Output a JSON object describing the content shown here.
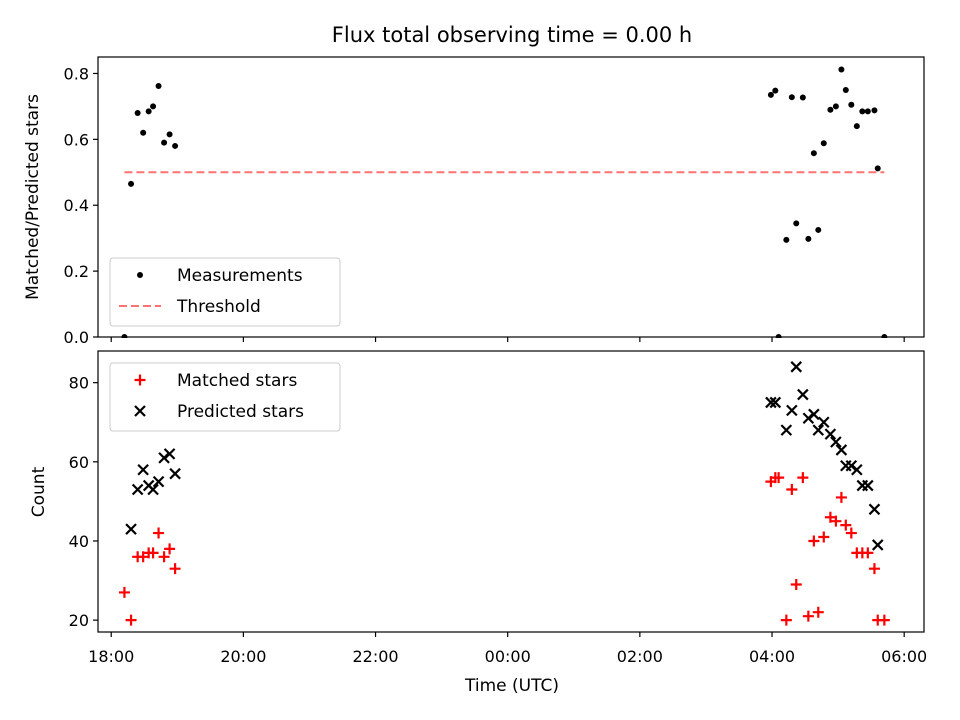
{
  "chart_data": [
    {
      "type": "scatter",
      "title": "Flux total observing time = 0.00 h",
      "ylabel": "Matched/Predicted stars",
      "xlabel": "",
      "xlim": [
        "17:48",
        "06:18"
      ],
      "ylim": [
        0,
        0.85
      ],
      "yticks": [
        "0.0",
        "0.2",
        "0.4",
        "0.6",
        "0.8"
      ],
      "legend_placement": "lower-left",
      "series": [
        {
          "name": "Measurements",
          "color": "#000000",
          "marker": "dot",
          "points": [
            [
              "18:12",
              0.0
            ],
            [
              "18:18",
              0.465
            ],
            [
              "18:24",
              0.68
            ],
            [
              "18:29",
              0.62
            ],
            [
              "18:34",
              0.685
            ],
            [
              "18:38",
              0.7
            ],
            [
              "18:43",
              0.762
            ],
            [
              "18:48",
              0.59
            ],
            [
              "18:53",
              0.615
            ],
            [
              "18:58",
              0.58
            ],
            [
              "03:59",
              0.735
            ],
            [
              "04:03",
              0.748
            ],
            [
              "04:06",
              0.0
            ],
            [
              "04:13",
              0.295
            ],
            [
              "04:18",
              0.728
            ],
            [
              "04:22",
              0.345
            ],
            [
              "04:28",
              0.727
            ],
            [
              "04:33",
              0.298
            ],
            [
              "04:38",
              0.558
            ],
            [
              "04:42",
              0.325
            ],
            [
              "04:47",
              0.588
            ],
            [
              "04:53",
              0.69
            ],
            [
              "04:58",
              0.7
            ],
            [
              "05:03",
              0.812
            ],
            [
              "05:07",
              0.75
            ],
            [
              "05:12",
              0.705
            ],
            [
              "05:17",
              0.64
            ],
            [
              "05:22",
              0.685
            ],
            [
              "05:27",
              0.685
            ],
            [
              "05:33",
              0.688
            ],
            [
              "05:36",
              0.512
            ],
            [
              "05:42",
              0.0
            ]
          ]
        },
        {
          "name": "Threshold",
          "color": "#ff7373",
          "style": "dashed",
          "points": [
            [
              "18:12",
              0.5
            ],
            [
              "05:42",
              0.5
            ]
          ]
        }
      ]
    },
    {
      "type": "scatter",
      "title": "",
      "ylabel": "Count",
      "xlabel": "Time (UTC)",
      "xlim": [
        "17:48",
        "06:18"
      ],
      "ylim": [
        17,
        88
      ],
      "yticks": [
        "20",
        "40",
        "60",
        "80"
      ],
      "xticks": [
        "18:00",
        "20:00",
        "22:00",
        "00:00",
        "02:00",
        "04:00",
        "06:00"
      ],
      "legend_placement": "upper-left",
      "series": [
        {
          "name": "Matched stars",
          "color": "#ff0000",
          "marker": "plus",
          "points": [
            [
              "18:12",
              27
            ],
            [
              "18:18",
              20
            ],
            [
              "18:24",
              36
            ],
            [
              "18:29",
              36
            ],
            [
              "18:34",
              37
            ],
            [
              "18:38",
              37
            ],
            [
              "18:43",
              42
            ],
            [
              "18:48",
              36
            ],
            [
              "18:53",
              38
            ],
            [
              "18:58",
              33
            ],
            [
              "03:59",
              55
            ],
            [
              "04:03",
              56
            ],
            [
              "04:06",
              56
            ],
            [
              "04:13",
              20
            ],
            [
              "04:18",
              53
            ],
            [
              "04:22",
              29
            ],
            [
              "04:28",
              56
            ],
            [
              "04:33",
              21
            ],
            [
              "04:38",
              40
            ],
            [
              "04:42",
              22
            ],
            [
              "04:47",
              41
            ],
            [
              "04:53",
              46
            ],
            [
              "04:58",
              45
            ],
            [
              "05:03",
              51
            ],
            [
              "05:07",
              44
            ],
            [
              "05:12",
              42
            ],
            [
              "05:17",
              37
            ],
            [
              "05:22",
              37
            ],
            [
              "05:27",
              37
            ],
            [
              "05:33",
              33
            ],
            [
              "05:36",
              20
            ],
            [
              "05:42",
              20
            ]
          ]
        },
        {
          "name": "Predicted stars",
          "color": "#000000",
          "marker": "x",
          "points": [
            [
              "18:18",
              43
            ],
            [
              "18:24",
              53
            ],
            [
              "18:29",
              58
            ],
            [
              "18:34",
              54
            ],
            [
              "18:38",
              53
            ],
            [
              "18:43",
              55
            ],
            [
              "18:48",
              61
            ],
            [
              "18:53",
              62
            ],
            [
              "18:58",
              57
            ],
            [
              "03:59",
              75
            ],
            [
              "04:03",
              75
            ],
            [
              "04:13",
              68
            ],
            [
              "04:18",
              73
            ],
            [
              "04:22",
              84
            ],
            [
              "04:28",
              77
            ],
            [
              "04:33",
              71
            ],
            [
              "04:38",
              72
            ],
            [
              "04:42",
              68
            ],
            [
              "04:47",
              70
            ],
            [
              "04:53",
              67
            ],
            [
              "04:58",
              65
            ],
            [
              "05:03",
              63
            ],
            [
              "05:07",
              59
            ],
            [
              "05:12",
              59
            ],
            [
              "05:17",
              58
            ],
            [
              "05:22",
              54
            ],
            [
              "05:27",
              54
            ],
            [
              "05:33",
              48
            ],
            [
              "05:36",
              39
            ]
          ]
        }
      ]
    }
  ]
}
